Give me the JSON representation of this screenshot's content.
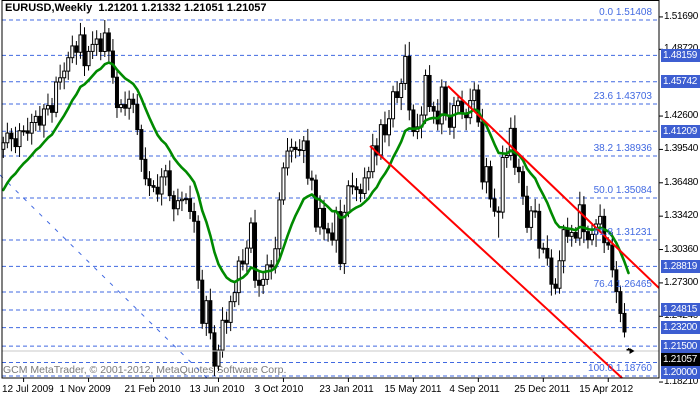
{
  "window": {
    "title": "EURUSD,Weekly  1.21201 1.21332 1.21051 1.21057",
    "copyright": "GCM MetaTrader, © 2001-2012, MetaQuotes Software Corp."
  },
  "colors": {
    "background": "#ffffff",
    "border": "#000000",
    "candle_outline": "#000000",
    "candle_up_fill": "#ffffff",
    "candle_down_fill": "#000000",
    "ma_green": "#008A00",
    "trend_red": "#FF0000",
    "level_blue": "#4169E1",
    "badge_blue": "#3D5ED1",
    "badge_black": "#000000",
    "current_price_line": "#C8C8C8",
    "copyright_gray": "#7b7b7b"
  },
  "chart_data": {
    "type": "candlestick",
    "symbol": "EURUSD",
    "timeframe": "Weekly",
    "title": "EURUSD,Weekly",
    "current_bar_ohlc": {
      "open": 1.21201,
      "high": 1.21332,
      "low": 1.21051,
      "close": 1.21057
    },
    "x_labels": [
      "12 Jul 2009",
      "1 Nov 2009",
      "21 Feb 2010",
      "13 Jun 2010",
      "3 Oct 2010",
      "23 Jan 2011",
      "15 May 2011",
      "4 Sep 2011",
      "25 Dec 2011",
      "15 Apr 2012"
    ],
    "x_label_first_bar": 5,
    "x_label_bar_step": 16,
    "closes": [
      1.4015,
      1.4104,
      1.4052,
      1.398,
      1.4125,
      1.4124,
      1.4103,
      1.4201,
      1.4257,
      1.4177,
      1.4325,
      1.4356,
      1.4294,
      1.4572,
      1.4611,
      1.4672,
      1.4795,
      1.4903,
      1.4845,
      1.5004,
      1.4722,
      1.4853,
      1.4917,
      1.4967,
      1.4852,
      1.5022,
      1.4856,
      1.4616,
      1.4338,
      1.4365,
      1.4332,
      1.4414,
      1.4367,
      1.4136,
      1.3863,
      1.3685,
      1.3622,
      1.3607,
      1.3545,
      1.3702,
      1.3758,
      1.353,
      1.341,
      1.3484,
      1.3497,
      1.3502,
      1.3385,
      1.3295,
      1.2755,
      1.2359,
      1.2567,
      1.2272,
      1.1967,
      1.2114,
      1.2387,
      1.2368,
      1.2558,
      1.2641,
      1.293,
      1.2904,
      1.3049,
      1.328,
      1.2754,
      1.2708,
      1.2762,
      1.2895,
      1.2876,
      1.3043,
      1.3491,
      1.3785,
      1.3939,
      1.3973,
      1.3953,
      1.3944,
      1.4032,
      1.369,
      1.3673,
      1.3242,
      1.3413,
      1.3226,
      1.3188,
      1.3122,
      1.3384,
      1.2907,
      1.3377,
      1.3621,
      1.3611,
      1.3585,
      1.355,
      1.3693,
      1.375,
      1.3987,
      1.3903,
      1.4181,
      1.4088,
      1.4235,
      1.4483,
      1.443,
      1.4559,
      1.4807,
      1.4316,
      1.4118,
      1.4161,
      1.4269,
      1.4632,
      1.4347,
      1.4305,
      1.4188,
      1.4526,
      1.4264,
      1.4157,
      1.4356,
      1.4398,
      1.4282,
      1.4245,
      1.4402,
      1.4499,
      1.4206,
      1.3656,
      1.3796,
      1.35,
      1.3387,
      1.3379,
      1.388,
      1.3898,
      1.4147,
      1.379,
      1.375,
      1.3525,
      1.3239,
      1.339,
      1.3386,
      1.3048,
      1.3046,
      1.2958,
      1.2718,
      1.2681,
      1.2933,
      1.3218,
      1.3157,
      1.3192,
      1.3141,
      1.3446,
      1.32,
      1.3125,
      1.3175,
      1.327,
      1.334,
      1.3099,
      1.3077,
      1.285,
      1.265,
      1.245,
      1.228,
      1.21057
    ],
    "extreme_overrides": [
      {
        "i": 25,
        "h": 1.51408
      },
      {
        "i": 52,
        "l": 1.1876
      },
      {
        "i": 100,
        "h": 1.494
      },
      {
        "i": 122,
        "l": 1.3145
      },
      {
        "i": 125,
        "h": 1.4247
      },
      {
        "i": 136,
        "l": 1.2624
      },
      {
        "i": 154,
        "o": 1.21201,
        "h": 1.21332,
        "l": 1.21051,
        "c": 1.21057
      }
    ],
    "moving_average": {
      "name": "moving-average",
      "method": "exponential",
      "period": 15,
      "seed": 1.352
    },
    "price_axis_ticks": [
      1.5169,
      1.4872,
      1.426,
      1.3954,
      1.3648,
      1.3342,
      1.3036,
      1.273,
      1.2424,
      1.1821
    ],
    "level_lines": [
      1.48159,
      1.45742,
      1.41209,
      1.28819,
      1.24815,
      1.232,
      1.215,
      1.2
    ],
    "fibonacci": {
      "levels": [
        {
          "pct": "0.0",
          "price": 1.51408
        },
        {
          "pct": "23.6",
          "price": 1.43703
        },
        {
          "pct": "38.2",
          "price": 1.38936
        },
        {
          "pct": "50.0",
          "price": 1.35084
        },
        {
          "pct": "61.8",
          "price": 1.31231
        },
        {
          "pct": "76.4",
          "price": 1.26465
        },
        {
          "pct": "100.0",
          "price": 1.1876
        }
      ]
    },
    "current_price": 1.21057,
    "trend_lines": [
      {
        "x1": 448,
        "y1": 86,
        "x2": 659,
        "y2": 288,
        "color": "#FF0000",
        "width": 2,
        "dashed": false
      },
      {
        "x1": 370,
        "y1": 146,
        "x2": 622,
        "y2": 378,
        "color": "#FF0000",
        "width": 2,
        "dashed": false
      },
      {
        "x1": 0,
        "y1": 175,
        "x2": 207,
        "y2": 378,
        "color": "#4169E1",
        "width": 1,
        "dashed": true
      }
    ],
    "ylim": [
      1.18579,
      1.53242
    ],
    "grid": false,
    "legend": false,
    "plot": {
      "x0": 2,
      "x1": 659,
      "y0": 0,
      "y1": 378,
      "bar_start_x": 3.3,
      "bar_spacing": 4.06,
      "body_width": 3
    }
  }
}
